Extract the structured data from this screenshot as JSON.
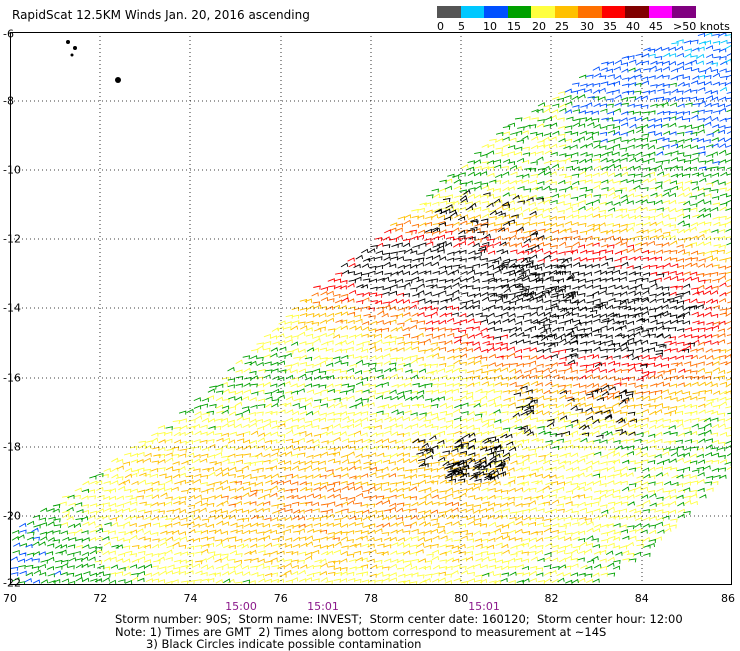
{
  "title": "RapidScat 12.5KM Winds Jan. 20, 2016 ascending",
  "scale": {
    "labels": [
      "0",
      "5",
      "10",
      "15",
      "20",
      "25",
      "30",
      "35",
      "40",
      "45",
      ">50 knots"
    ],
    "colors": [
      "#555555",
      "#00c8ff",
      "#0050ff",
      "#00a000",
      "#ffff40",
      "#ffc000",
      "#ff7000",
      "#ff0000",
      "#800000",
      "#ff00ff",
      "#800080"
    ]
  },
  "axes": {
    "x_labels": [
      "70",
      "72",
      "74",
      "76",
      "78",
      "80",
      "82",
      "84",
      "86"
    ],
    "y_labels": [
      "-6",
      "-8",
      "-10",
      "-12",
      "-14",
      "-16",
      "-18",
      "-20",
      "-22"
    ]
  },
  "times": [
    "15:00",
    "15:01",
    "15:01"
  ],
  "info": {
    "line1": "Storm number: 90S;  Storm name: INVEST;  Storm center date: 160120;  Storm center hour: 12:00",
    "line2": "Note: 1) Times are GMT  2) Times along bottom correspond to measurement at ~14S",
    "line3": "3) Black Circles indicate possible contamination"
  }
}
